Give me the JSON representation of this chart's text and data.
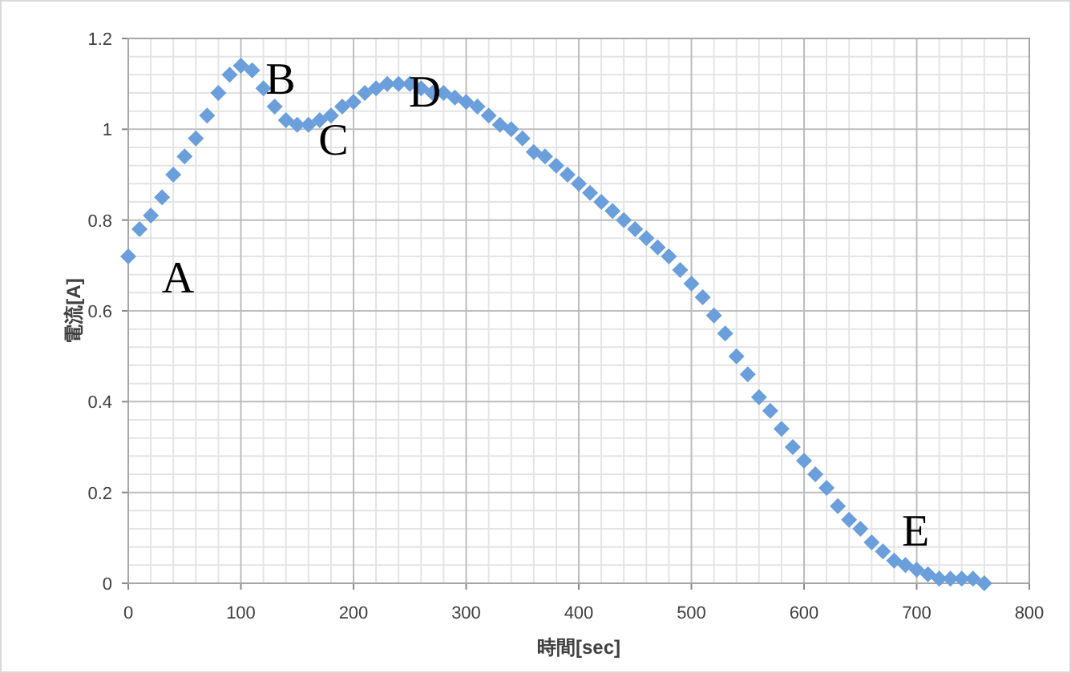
{
  "chart_data": {
    "type": "scatter",
    "xlabel": "時間[sec]",
    "ylabel": "電流[A]",
    "x": [
      0,
      10,
      20,
      30,
      40,
      50,
      60,
      70,
      80,
      90,
      100,
      110,
      120,
      130,
      140,
      150,
      160,
      170,
      180,
      190,
      200,
      210,
      220,
      230,
      240,
      250,
      260,
      270,
      280,
      290,
      300,
      310,
      320,
      330,
      340,
      350,
      360,
      370,
      380,
      390,
      400,
      410,
      420,
      430,
      440,
      450,
      460,
      470,
      480,
      490,
      500,
      510,
      520,
      530,
      540,
      550,
      560,
      570,
      580,
      590,
      600,
      610,
      620,
      630,
      640,
      650,
      660,
      670,
      680,
      690,
      700,
      710,
      720,
      730,
      740,
      750,
      760
    ],
    "series": [
      {
        "color": "#6a9fdc",
        "values": [
          0.72,
          0.78,
          0.81,
          0.85,
          0.9,
          0.94,
          0.98,
          1.03,
          1.08,
          1.12,
          1.14,
          1.13,
          1.09,
          1.05,
          1.02,
          1.01,
          1.01,
          1.02,
          1.03,
          1.05,
          1.06,
          1.08,
          1.09,
          1.1,
          1.1,
          1.1,
          1.09,
          1.08,
          1.08,
          1.07,
          1.06,
          1.05,
          1.03,
          1.01,
          1.0,
          0.98,
          0.95,
          0.94,
          0.92,
          0.9,
          0.88,
          0.86,
          0.84,
          0.82,
          0.8,
          0.78,
          0.76,
          0.74,
          0.72,
          0.69,
          0.66,
          0.63,
          0.59,
          0.55,
          0.5,
          0.46,
          0.41,
          0.38,
          0.34,
          0.3,
          0.27,
          0.24,
          0.21,
          0.17,
          0.14,
          0.12,
          0.09,
          0.07,
          0.05,
          0.04,
          0.03,
          0.02,
          0.01,
          0.01,
          0.01,
          0.01,
          0.0
        ]
      }
    ],
    "xlim": [
      0,
      800
    ],
    "xticks": [
      0,
      100,
      200,
      300,
      400,
      500,
      600,
      700,
      800
    ],
    "ylim": [
      0,
      1.2
    ],
    "yticks": [
      0,
      0.2,
      0.4,
      0.6,
      0.8,
      1,
      1.2
    ],
    "grid": true,
    "marker": "diamond",
    "annotations": [
      "A",
      "B",
      "C",
      "D",
      "E"
    ]
  }
}
